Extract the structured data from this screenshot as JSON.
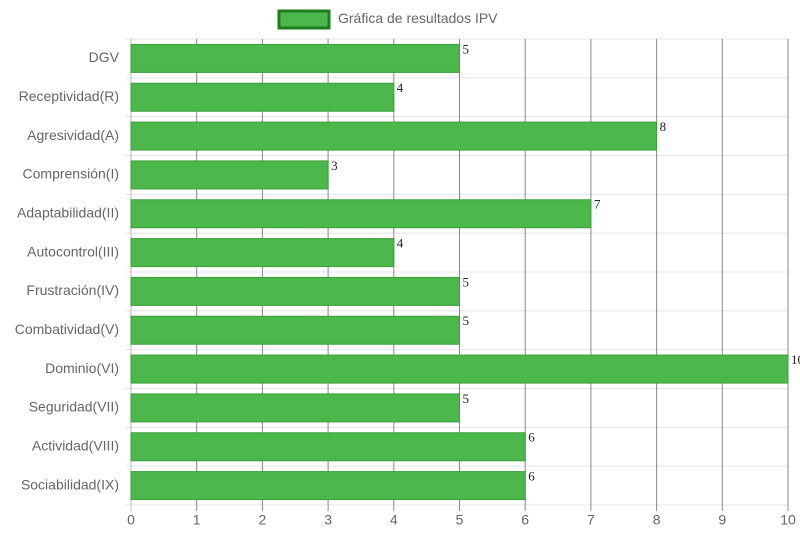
{
  "chart_data": {
    "type": "bar",
    "orientation": "horizontal",
    "legend": {
      "label": "Gráfica de resultados IPV",
      "position": "top"
    },
    "categories": [
      "DGV",
      "Receptividad(R)",
      "Agresividad(A)",
      "Comprensión(I)",
      "Adaptabilidad(II)",
      "Autocontrol(III)",
      "Frustración(IV)",
      "Combatividad(V)",
      "Dominio(VI)",
      "Seguridad(VII)",
      "Actividad(VIII)",
      "Sociabilidad(IX)"
    ],
    "values": [
      5,
      4,
      8,
      3,
      7,
      4,
      5,
      5,
      10,
      5,
      6,
      6
    ],
    "color": "#4cb84c",
    "border_color": "#3c9e3c",
    "xlim": [
      0,
      10
    ],
    "xticks": [
      0,
      1,
      2,
      3,
      4,
      5,
      6,
      7,
      8,
      9,
      10
    ],
    "grid": true,
    "data_labels": true
  }
}
